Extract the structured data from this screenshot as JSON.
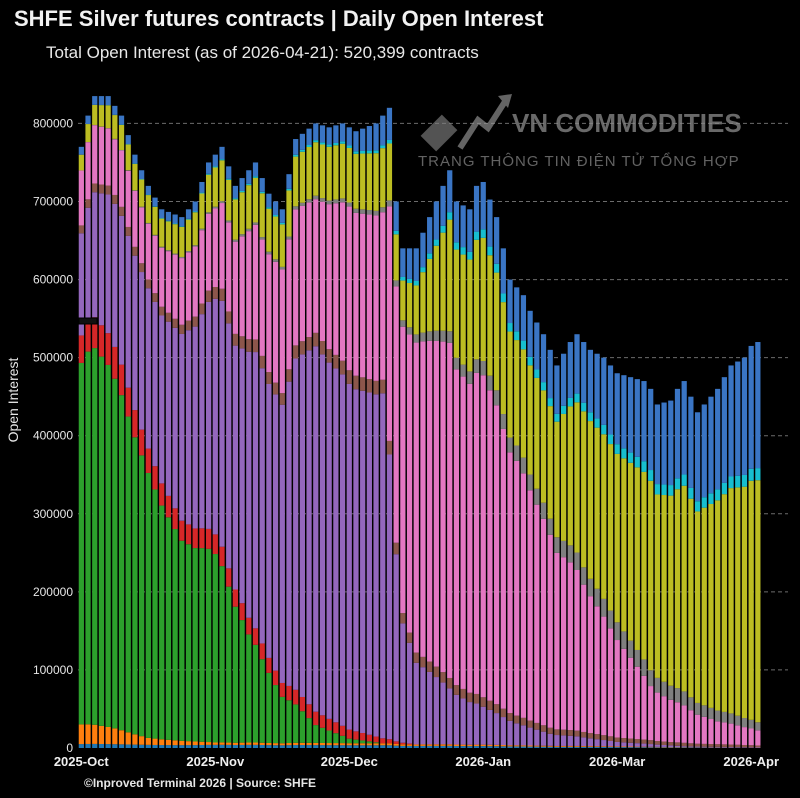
{
  "chart_data": {
    "type": "bar",
    "stacked": true,
    "title": "SHFE Silver futures contracts | Daily Open Interest",
    "subtitle": "Total Open Interest (as of 2026-04-21): 520,399 contracts",
    "ylabel": "Open Interest",
    "xlabel": "",
    "ylim": [
      0,
      830000
    ],
    "yticks": [
      0,
      100000,
      200000,
      300000,
      400000,
      500000,
      600000,
      700000,
      800000
    ],
    "xticks": [
      {
        "label": "2025-Oct",
        "x": 0
      },
      {
        "label": "2025-Nov",
        "x": 20
      },
      {
        "label": "2025-Dec",
        "x": 40
      },
      {
        "label": "2026-Jan",
        "x": 60
      },
      {
        "label": "2026-Mar",
        "x": 80
      },
      {
        "label": "2026-Apr",
        "x": 100
      }
    ],
    "num_days": 106,
    "grid": "horizontal-dashed",
    "legend": "none",
    "total_open_interest": {
      "knots": [
        [
          0,
          770000
        ],
        [
          1,
          810000
        ],
        [
          2,
          835000
        ],
        [
          4,
          835000
        ],
        [
          6,
          810000
        ],
        [
          8,
          760000
        ],
        [
          10,
          720000
        ],
        [
          12,
          690000
        ],
        [
          15,
          680000
        ],
        [
          17,
          700000
        ],
        [
          19,
          750000
        ],
        [
          21,
          770000
        ],
        [
          23,
          720000
        ],
        [
          24,
          730000
        ],
        [
          26,
          750000
        ],
        [
          28,
          710000
        ],
        [
          30,
          690000
        ],
        [
          32,
          780000
        ],
        [
          35,
          800000
        ],
        [
          37,
          795000
        ],
        [
          39,
          800000
        ],
        [
          41,
          790000
        ],
        [
          44,
          800000
        ],
        [
          46,
          820000
        ],
        [
          47,
          700000
        ],
        [
          48,
          640000
        ],
        [
          50,
          640000
        ],
        [
          52,
          680000
        ],
        [
          54,
          720000
        ],
        [
          55,
          740000
        ],
        [
          56,
          700000
        ],
        [
          58,
          690000
        ],
        [
          59,
          720000
        ],
        [
          60,
          725000
        ],
        [
          62,
          680000
        ],
        [
          63,
          640000
        ],
        [
          64,
          600000
        ],
        [
          66,
          580000
        ],
        [
          67,
          560000
        ],
        [
          69,
          530000
        ],
        [
          71,
          490000
        ],
        [
          73,
          520000
        ],
        [
          74,
          530000
        ],
        [
          76,
          510000
        ],
        [
          78,
          500000
        ],
        [
          80,
          480000
        ],
        [
          82,
          475000
        ],
        [
          84,
          470000
        ],
        [
          85,
          460000
        ],
        [
          86,
          440000
        ],
        [
          88,
          445000
        ],
        [
          89,
          460000
        ],
        [
          90,
          470000
        ],
        [
          92,
          430000
        ],
        [
          93,
          440000
        ],
        [
          94,
          450000
        ],
        [
          95,
          460000
        ],
        [
          97,
          490000
        ],
        [
          99,
          500000
        ],
        [
          100,
          515000
        ],
        [
          101,
          520000
        ]
      ]
    },
    "series": [
      {
        "name": "",
        "color": "#1f77b4",
        "knots": [
          [
            0,
            5000
          ],
          [
            101,
            0
          ]
        ]
      },
      {
        "name": "",
        "color": "#ff7f0e",
        "knots": [
          [
            0,
            25000
          ],
          [
            5,
            20000
          ],
          [
            10,
            10000
          ],
          [
            20,
            3000
          ],
          [
            101,
            0
          ]
        ]
      },
      {
        "name": "",
        "color": "#2ca02c",
        "knots": [
          [
            0,
            460000
          ],
          [
            5,
            440000
          ],
          [
            10,
            380000
          ],
          [
            15,
            300000
          ],
          [
            20,
            240000
          ],
          [
            25,
            130000
          ],
          [
            30,
            60000
          ],
          [
            35,
            20000
          ],
          [
            40,
            5000
          ],
          [
            45,
            0
          ],
          [
            101,
            0
          ]
        ]
      },
      {
        "name": "",
        "color": "#d62728",
        "knots": [
          [
            0,
            35000
          ],
          [
            5,
            40000
          ],
          [
            10,
            35000
          ],
          [
            15,
            30000
          ],
          [
            20,
            25000
          ],
          [
            25,
            20000
          ],
          [
            30,
            18000
          ],
          [
            35,
            15000
          ],
          [
            40,
            10000
          ],
          [
            45,
            5000
          ],
          [
            50,
            0
          ],
          [
            101,
            0
          ]
        ]
      },
      {
        "name": "",
        "color": "#9467bd",
        "knots": [
          [
            0,
            130000
          ],
          [
            5,
            180000
          ],
          [
            10,
            230000
          ],
          [
            15,
            280000
          ],
          [
            20,
            300000
          ],
          [
            25,
            320000
          ],
          [
            30,
            360000
          ],
          [
            35,
            410000
          ],
          [
            40,
            380000
          ],
          [
            45,
            350000
          ],
          [
            48,
            150000
          ],
          [
            50,
            100000
          ],
          [
            55,
            60000
          ],
          [
            60,
            40000
          ],
          [
            65,
            25000
          ],
          [
            70,
            15000
          ],
          [
            75,
            10000
          ],
          [
            80,
            5000
          ],
          [
            85,
            3000
          ],
          [
            90,
            1000
          ],
          [
            101,
            500
          ]
        ]
      },
      {
        "name": "",
        "color": "#8c564b",
        "knots": [
          [
            0,
            10000
          ],
          [
            20,
            15000
          ],
          [
            40,
            15000
          ],
          [
            60,
            10000
          ],
          [
            80,
            5000
          ],
          [
            101,
            2000
          ]
        ]
      },
      {
        "name": "",
        "color": "#e377c2",
        "knots": [
          [
            0,
            70000
          ],
          [
            5,
            70000
          ],
          [
            10,
            80000
          ],
          [
            15,
            100000
          ],
          [
            20,
            100000
          ],
          [
            25,
            130000
          ],
          [
            30,
            160000
          ],
          [
            35,
            150000
          ],
          [
            40,
            180000
          ],
          [
            45,
            170000
          ],
          [
            48,
            360000
          ],
          [
            50,
            380000
          ],
          [
            55,
            360000
          ],
          [
            60,
            340000
          ],
          [
            65,
            290000
          ],
          [
            70,
            240000
          ],
          [
            75,
            170000
          ],
          [
            80,
            110000
          ],
          [
            85,
            60000
          ],
          [
            90,
            40000
          ],
          [
            95,
            25000
          ],
          [
            101,
            15000
          ]
        ]
      },
      {
        "name": "",
        "color": "#7f7f7f",
        "knots": [
          [
            0,
            0
          ],
          [
            45,
            5000
          ],
          [
            50,
            10000
          ],
          [
            60,
            15000
          ],
          [
            70,
            20000
          ],
          [
            80,
            20000
          ],
          [
            90,
            15000
          ],
          [
            101,
            8000
          ]
        ]
      },
      {
        "name": "",
        "color": "#bcbd22",
        "knots": [
          [
            0,
            20000
          ],
          [
            10,
            40000
          ],
          [
            20,
            50000
          ],
          [
            30,
            55000
          ],
          [
            35,
            60000
          ],
          [
            40,
            60000
          ],
          [
            45,
            60000
          ],
          [
            48,
            50000
          ],
          [
            50,
            60000
          ],
          [
            55,
            120000
          ],
          [
            60,
            130000
          ],
          [
            65,
            120000
          ],
          [
            70,
            140000
          ],
          [
            75,
            180000
          ],
          [
            80,
            190000
          ],
          [
            85,
            210000
          ],
          [
            90,
            220000
          ],
          [
            95,
            230000
          ],
          [
            101,
            240000
          ]
        ]
      },
      {
        "name": "",
        "color": "#17becf",
        "knots": [
          [
            0,
            0
          ],
          [
            45,
            3000
          ],
          [
            55,
            8000
          ],
          [
            65,
            10000
          ],
          [
            75,
            10000
          ],
          [
            85,
            12000
          ],
          [
            101,
            12000
          ]
        ]
      },
      {
        "name": "",
        "color": "#3a75c4",
        "knots": [
          [
            0,
            10000
          ],
          [
            20,
            15000
          ],
          [
            40,
            20000
          ],
          [
            50,
            40000
          ],
          [
            60,
            50000
          ],
          [
            65,
            50000
          ],
          [
            70,
            60000
          ],
          [
            75,
            70000
          ],
          [
            80,
            80000
          ],
          [
            85,
            90000
          ],
          [
            90,
            100000
          ],
          [
            95,
            110000
          ],
          [
            101,
            125000
          ]
        ]
      }
    ]
  },
  "footer": "©Inproved Terminal 2026 | Source: SHFE",
  "watermark": {
    "brand": "VN COMMODITIES",
    "tagline": "TRANG THÔNG TIN ĐIỆN TỬ TỔNG HỢP"
  }
}
